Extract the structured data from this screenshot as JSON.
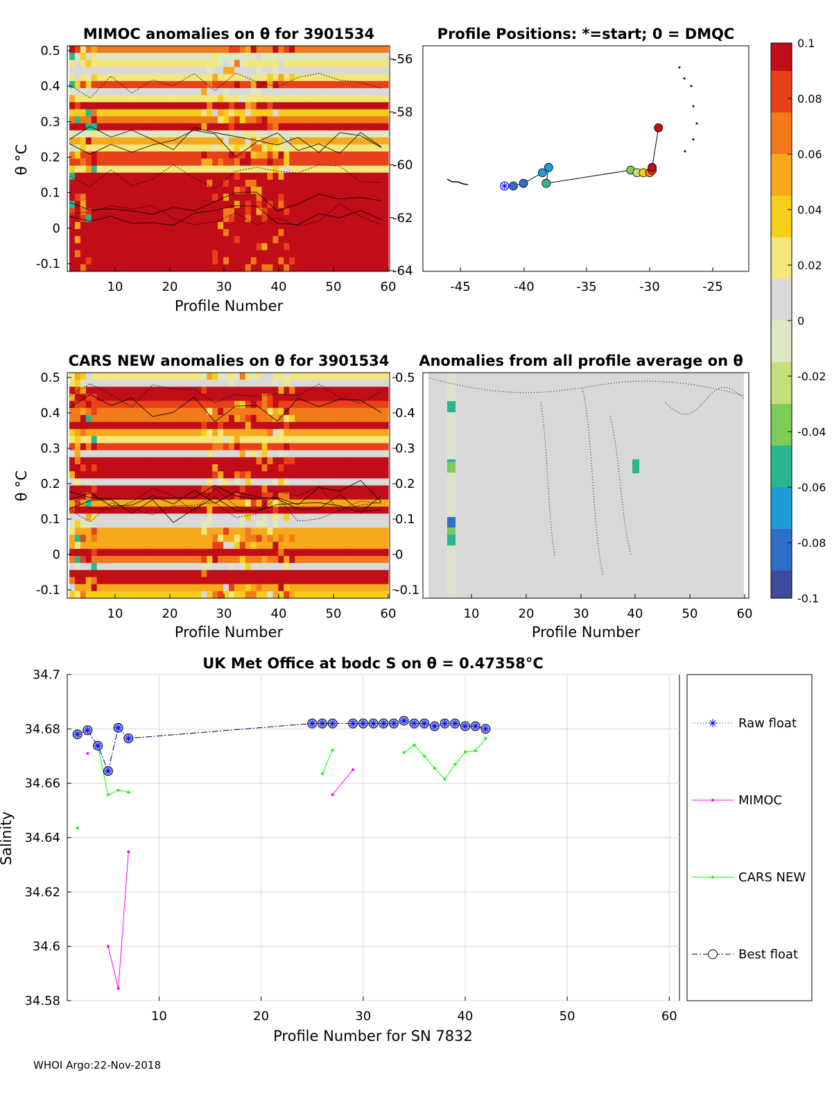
{
  "colors": {
    "cmap": [
      "#3e4b9c",
      "#2f6fc9",
      "#1f9bd6",
      "#2ab68f",
      "#7ccc55",
      "#c5e07a",
      "#dde7c2",
      "#d9d9d9",
      "#f3e67a",
      "#f5cf1a",
      "#f6a91a",
      "#f37a1b",
      "#e84019",
      "#c00d17"
    ],
    "raw_float": "#0000ff",
    "mimoc": "#ff00ff",
    "cars": "#00ff00",
    "best": "#000000",
    "marker_fill": "#9aa8e8"
  },
  "panel1": {
    "title": "MIMOC anomalies on θ  for 3901534",
    "ylabel": "θ °C",
    "xlabel": "Profile Number",
    "xticks": [
      "10",
      "20",
      "30",
      "40",
      "50",
      "60"
    ],
    "yticks": [
      "0.5",
      "0.4",
      "0.3",
      "0.2",
      "0.1",
      "0",
      "-0.1"
    ],
    "right_ticks": [
      "-56",
      "-58",
      "-60",
      "-62",
      "-64"
    ]
  },
  "panel2": {
    "title": "Profile Positions: *=start; 0 = DMQC",
    "xticks": [
      "-45",
      "-40",
      "-35",
      "-30",
      "-25"
    ],
    "track": [
      {
        "lon": -41.5,
        "lat": -60.8,
        "c": 0
      },
      {
        "lon": -40.8,
        "lat": -60.8,
        "c": 1
      },
      {
        "lon": -40.0,
        "lat": -60.7,
        "c": 1
      },
      {
        "lon": -38.5,
        "lat": -60.3,
        "c": 2
      },
      {
        "lon": -38.0,
        "lat": -60.1,
        "c": 2
      },
      {
        "lon": -38.2,
        "lat": -60.7,
        "c": 3
      },
      {
        "lon": -31.5,
        "lat": -60.2,
        "c": 4
      },
      {
        "lon": -31.0,
        "lat": -60.3,
        "c": 5
      },
      {
        "lon": -30.5,
        "lat": -60.3,
        "c": 9
      },
      {
        "lon": -30.0,
        "lat": -60.3,
        "c": 11
      },
      {
        "lon": -29.8,
        "lat": -60.2,
        "c": 12
      },
      {
        "lon": -29.8,
        "lat": -60.1,
        "c": 13
      },
      {
        "lon": -29.3,
        "lat": -58.6,
        "c": 13
      }
    ]
  },
  "panel3": {
    "title": "CARS NEW anomalies on θ for 3901534",
    "ylabel": "θ °C",
    "xlabel": "Profile Number",
    "xticks": [
      "10",
      "20",
      "30",
      "40",
      "50",
      "60"
    ],
    "yticks": [
      "0.5",
      "0.4",
      "0.3",
      "0.2",
      "0.1",
      "0",
      "-0.1"
    ]
  },
  "panel4": {
    "title": "Anomalies from all profile average on θ",
    "xlabel": "Profile Number",
    "xticks": [
      "10",
      "20",
      "30",
      "40",
      "50",
      "60"
    ],
    "yticks": [
      "0.5",
      "0.4",
      "0.3",
      "0.2",
      "0.1",
      "0",
      "-0.1"
    ]
  },
  "colorbar": {
    "ticks": [
      "0.1",
      "0.08",
      "0.06",
      "0.04",
      "0.02",
      "0",
      "-0.02",
      "-0.04",
      "-0.06",
      "-0.08",
      "-0.1"
    ]
  },
  "chart_data": {
    "type": "line",
    "title": "UK Met Office at bodc S on θ = 0.47358°C",
    "xlabel": "Profile Number for SN 7832",
    "ylabel": "Salinity",
    "xlim": [
      1,
      61
    ],
    "ylim": [
      34.58,
      34.7
    ],
    "xticks": [
      "10",
      "20",
      "30",
      "40",
      "50",
      "60"
    ],
    "yticks": [
      "34.7",
      "34.68",
      "34.66",
      "34.64",
      "34.62",
      "34.6",
      "34.58"
    ],
    "grid": true,
    "legend_position": "right-outside",
    "series": [
      {
        "name": "Raw float",
        "style": "dotted-star",
        "segments": [
          [
            [
              2,
              34.678
            ],
            [
              3,
              34.6795
            ],
            [
              4,
              34.6738
            ],
            [
              5,
              34.6645
            ],
            [
              6,
              34.6804
            ],
            [
              7,
              34.6765
            ],
            [
              25,
              34.682
            ],
            [
              26,
              34.682
            ],
            [
              27,
              34.682
            ],
            [
              29,
              34.682
            ],
            [
              30,
              34.682
            ],
            [
              31,
              34.682
            ],
            [
              32,
              34.682
            ],
            [
              33,
              34.682
            ],
            [
              34,
              34.683
            ],
            [
              35,
              34.682
            ],
            [
              36,
              34.682
            ],
            [
              37,
              34.681
            ],
            [
              38,
              34.682
            ],
            [
              39,
              34.682
            ],
            [
              40,
              34.681
            ],
            [
              41,
              34.681
            ],
            [
              42,
              34.68
            ]
          ]
        ]
      },
      {
        "name": "MIMOC",
        "style": "solid-dot",
        "segments": [
          [
            [
              3,
              34.671
            ]
          ],
          [
            [
              5,
              34.6
            ],
            [
              6,
              34.5845
            ],
            [
              7,
              34.6348
            ]
          ],
          [
            [
              27,
              34.6558
            ],
            [
              29,
              34.665
            ]
          ]
        ]
      },
      {
        "name": "CARS NEW",
        "style": "solid-dot",
        "segments": [
          [
            [
              2,
              34.6435
            ]
          ],
          [
            [
              4,
              34.6735
            ],
            [
              5,
              34.6558
            ],
            [
              6,
              34.6575
            ],
            [
              7,
              34.6567
            ]
          ],
          [
            [
              26,
              34.6635
            ],
            [
              27,
              34.6722
            ]
          ],
          [
            [
              34,
              34.6713
            ],
            [
              35,
              34.674
            ],
            [
              36,
              34.67
            ],
            [
              37,
              34.6655
            ],
            [
              38,
              34.6615
            ],
            [
              39,
              34.667
            ],
            [
              40,
              34.6715
            ],
            [
              41,
              34.672
            ],
            [
              42,
              34.6765
            ]
          ]
        ]
      },
      {
        "name": "Best float",
        "style": "dashdot-circle",
        "segments": [
          [
            [
              2,
              34.678
            ],
            [
              3,
              34.6795
            ],
            [
              4,
              34.6738
            ],
            [
              5,
              34.6645
            ],
            [
              6,
              34.6804
            ],
            [
              7,
              34.6765
            ],
            [
              25,
              34.682
            ],
            [
              26,
              34.682
            ],
            [
              27,
              34.682
            ],
            [
              29,
              34.682
            ],
            [
              30,
              34.682
            ],
            [
              31,
              34.682
            ],
            [
              32,
              34.682
            ],
            [
              33,
              34.682
            ],
            [
              34,
              34.683
            ],
            [
              35,
              34.682
            ],
            [
              36,
              34.682
            ],
            [
              37,
              34.681
            ],
            [
              38,
              34.682
            ],
            [
              39,
              34.682
            ],
            [
              40,
              34.681
            ],
            [
              41,
              34.681
            ],
            [
              42,
              34.68
            ]
          ]
        ]
      }
    ]
  },
  "footer": "WHOI Argo:22-Nov-2018"
}
